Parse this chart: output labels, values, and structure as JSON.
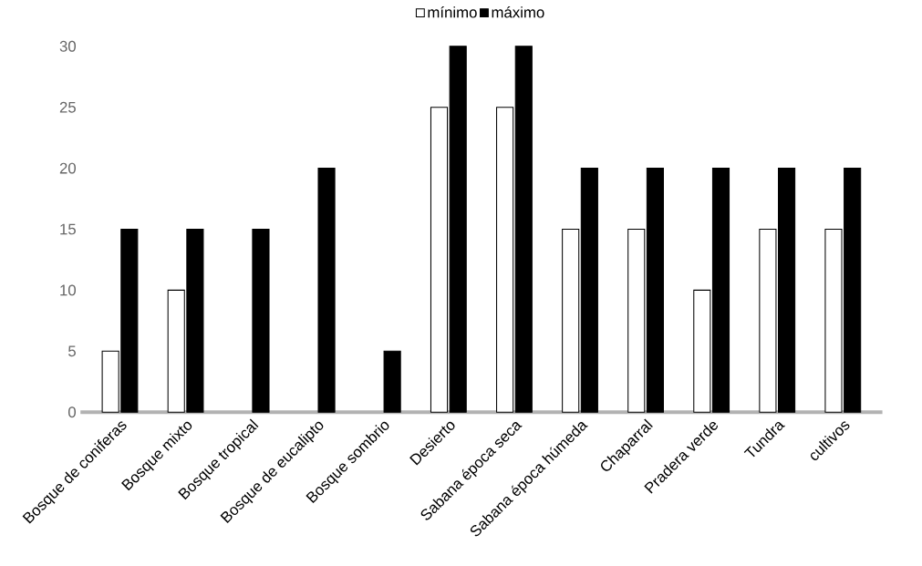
{
  "chart_data": {
    "type": "bar",
    "categories": [
      "Bosque de coniferas",
      "Bosque mixto",
      "Bosque tropical",
      "Bosque de eucalipto",
      "Bosque sombrio",
      "Desierto",
      "Sabana época seca",
      "Sabana época húmeda",
      "Chaparral",
      "Pradera verde",
      "Tundra",
      "cultivos"
    ],
    "series": [
      {
        "name": "mínimo",
        "color": "#ffffff",
        "values": [
          5,
          10,
          null,
          null,
          null,
          25,
          25,
          15,
          15,
          10,
          15,
          15
        ]
      },
      {
        "name": "máximo",
        "color": "#000000",
        "values": [
          15,
          15,
          15,
          20,
          5,
          30,
          30,
          20,
          20,
          20,
          20,
          20
        ]
      }
    ],
    "ylim": [
      0,
      30
    ],
    "yticks": [
      0,
      5,
      10,
      15,
      20,
      25,
      30
    ],
    "grid": false,
    "legend": "top"
  }
}
